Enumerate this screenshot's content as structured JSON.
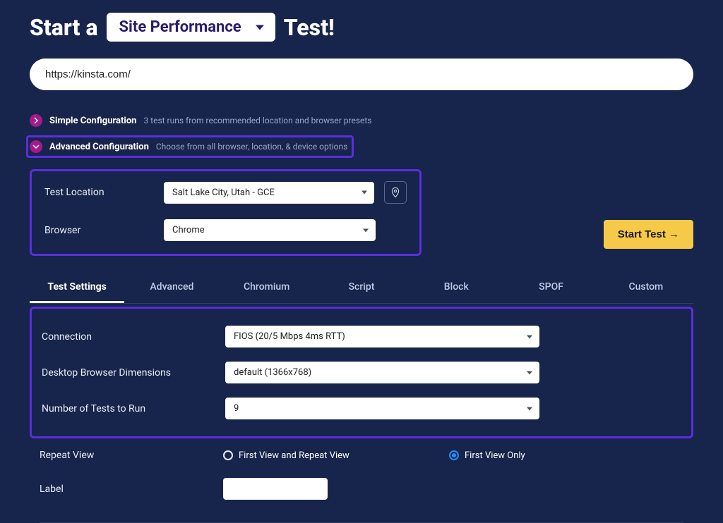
{
  "header": {
    "prefix": "Start a",
    "type_selected": "Site Performance",
    "suffix": "Test!"
  },
  "url_input": {
    "value": "https://kinsta.com/"
  },
  "config": {
    "simple": {
      "title": "Simple Configuration",
      "subtitle": "3 test runs from recommended location and browser presets"
    },
    "advanced": {
      "title": "Advanced Configuration",
      "subtitle": "Choose from all browser, location, & device options"
    }
  },
  "location_browser": {
    "location_label": "Test Location",
    "location_value": "Salt Lake City, Utah - GCE",
    "browser_label": "Browser",
    "browser_value": "Chrome"
  },
  "start_button": "Start Test →",
  "tabs": [
    "Test Settings",
    "Advanced",
    "Chromium",
    "Script",
    "Block",
    "SPOF",
    "Custom"
  ],
  "active_tab_index": 0,
  "settings": {
    "connection_label": "Connection",
    "connection_value": "FIOS (20/5 Mbps 4ms RTT)",
    "dimensions_label": "Desktop Browser Dimensions",
    "dimensions_value": "default (1366x768)",
    "runs_label": "Number of Tests to Run",
    "runs_value": "9",
    "repeat_label": "Repeat View",
    "repeat_opt1": "First View and Repeat View",
    "repeat_opt2": "First View Only",
    "repeat_selected": 1,
    "label_label": "Label",
    "label_value": ""
  },
  "colors": {
    "background": "#17244b",
    "highlight_border": "#5b2ee0",
    "accent_circle": "#a31a8e",
    "start_button_bg": "#f7c948",
    "radio_selected": "#1e90ff"
  }
}
